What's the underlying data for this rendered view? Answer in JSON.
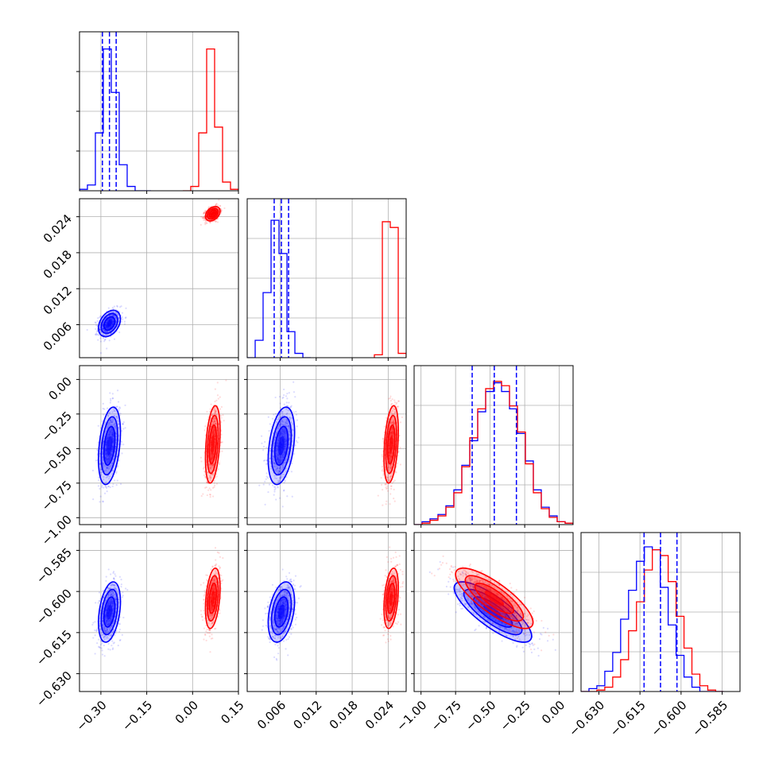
{
  "chart_data": {
    "type": "corner",
    "parameters": 4,
    "colors": {
      "blue": "#0000ff",
      "red": "#ff0000",
      "grid": "#b0b0b0"
    },
    "grid": true,
    "axes": [
      {
        "lim": [
          -0.37,
          0.15
        ],
        "ticks": [
          -0.3,
          -0.15,
          0.0,
          0.15
        ],
        "tick_labels": [
          "−0.30",
          "−0.15",
          "0.00",
          "0.15"
        ]
      },
      {
        "lim": [
          0.0005,
          0.027
        ],
        "ticks": [
          0.006,
          0.012,
          0.018,
          0.024
        ],
        "tick_labels": [
          "0.006",
          "0.012",
          "0.018",
          "0.024"
        ]
      },
      {
        "lim": [
          -1.05,
          0.1
        ],
        "ticks": [
          -1.0,
          -0.75,
          -0.5,
          -0.25,
          0.0
        ],
        "tick_labels": [
          "−1.00",
          "−0.75",
          "−0.50",
          "−0.25",
          "0.00"
        ]
      },
      {
        "lim": [
          -0.6365,
          -0.5785
        ],
        "ticks": [
          -0.63,
          -0.615,
          -0.6,
          -0.585
        ],
        "tick_labels": [
          "−0.630",
          "−0.615",
          "−0.600",
          "−0.585"
        ]
      }
    ],
    "series": [
      {
        "color": "blue",
        "mean": [
          -0.272,
          0.0062,
          -0.48,
          -0.6075
        ],
        "std": [
          0.018,
          0.0011,
          0.14,
          0.0055
        ],
        "quantiles": [
          [
            -0.295,
            -0.272,
            -0.25
          ],
          [
            0.005,
            0.0062,
            0.0074
          ],
          [
            -0.63,
            -0.47,
            -0.31
          ],
          [
            -0.6135,
            -0.6075,
            -0.6015
          ]
        ],
        "histograms": [
          {
            "edges": [
              -0.37,
              -0.344,
              -0.318,
              -0.292,
              -0.266,
              -0.24,
              -0.214,
              -0.188,
              -0.162,
              -0.136
            ],
            "counts": [
              0.01,
              0.04,
              0.4,
              0.98,
              0.68,
              0.18,
              0.03,
              0.0,
              0.0
            ]
          },
          {
            "edges": [
              0.0005,
              0.00183,
              0.00315,
              0.00448,
              0.0058,
              0.00713,
              0.00845,
              0.00978,
              0.0111
            ],
            "counts": [
              0.0,
              0.12,
              0.45,
              0.95,
              0.72,
              0.18,
              0.03,
              0.0
            ]
          },
          {
            "edges": [
              -1.05,
              -0.9925,
              -0.935,
              -0.8775,
              -0.82,
              -0.7625,
              -0.705,
              -0.6475,
              -0.59,
              -0.5325,
              -0.475,
              -0.4175,
              -0.36,
              -0.3025,
              -0.245,
              -0.1875,
              -0.13,
              -0.0725,
              -0.015,
              0.0425,
              0.1
            ],
            "counts": [
              0.0,
              0.02,
              0.04,
              0.07,
              0.13,
              0.24,
              0.41,
              0.58,
              0.78,
              0.92,
              0.98,
              0.92,
              0.8,
              0.63,
              0.44,
              0.24,
              0.12,
              0.06,
              0.02,
              0.01
            ]
          },
          {
            "edges": [
              -0.6365,
              -0.63361,
              -0.63072,
              -0.62783,
              -0.62494,
              -0.62205,
              -0.61916,
              -0.61627,
              -0.61338,
              -0.61049,
              -0.6076,
              -0.60471,
              -0.60182,
              -0.59893,
              -0.59604,
              -0.59315,
              -0.59026,
              -0.58737,
              -0.58448
            ],
            "counts": [
              0.0,
              0.02,
              0.04,
              0.14,
              0.27,
              0.5,
              0.7,
              0.9,
              1.0,
              0.98,
              0.72,
              0.46,
              0.25,
              0.1,
              0.03,
              0.0,
              0.0,
              0.0
            ]
          }
        ]
      },
      {
        "color": "red",
        "mean": [
          0.066,
          0.0245,
          -0.47,
          -0.6025
        ],
        "std": [
          0.012,
          0.0006,
          0.14,
          0.0055
        ],
        "histograms": [
          {
            "edges": [
              -0.032,
              -0.006,
              0.02,
              0.046,
              0.072,
              0.098,
              0.124,
              0.15
            ],
            "counts": [
              0.0,
              0.03,
              0.4,
              0.98,
              0.44,
              0.06,
              0.01
            ]
          },
          {
            "edges": [
              0.0217,
              0.02303,
              0.02435,
              0.02568,
              0.027
            ],
            "counts": [
              0.02,
              0.94,
              0.9,
              0.03
            ]
          },
          {
            "edges": [
              -1.05,
              -0.9925,
              -0.935,
              -0.8775,
              -0.82,
              -0.7625,
              -0.705,
              -0.6475,
              -0.59,
              -0.5325,
              -0.475,
              -0.4175,
              -0.36,
              -0.3025,
              -0.245,
              -0.1875,
              -0.13,
              -0.0725,
              -0.015,
              0.0425,
              0.1
            ],
            "counts": [
              0.0,
              0.01,
              0.03,
              0.06,
              0.12,
              0.22,
              0.4,
              0.6,
              0.8,
              0.94,
              0.99,
              0.96,
              0.82,
              0.64,
              0.42,
              0.22,
              0.11,
              0.05,
              0.02,
              0.01
            ]
          },
          {
            "edges": [
              -0.6365,
              -0.63361,
              -0.63072,
              -0.62783,
              -0.62494,
              -0.62205,
              -0.61916,
              -0.61627,
              -0.61338,
              -0.61049,
              -0.6076,
              -0.60471,
              -0.60182,
              -0.59893,
              -0.59604,
              -0.59315,
              -0.59026,
              -0.58737,
              -0.58448
            ],
            "counts": [
              0.0,
              0.0,
              0.01,
              0.03,
              0.1,
              0.22,
              0.42,
              0.62,
              0.84,
              0.98,
              0.94,
              0.76,
              0.52,
              0.3,
              0.12,
              0.04,
              0.01,
              0.0
            ]
          }
        ]
      }
    ],
    "correlations": {
      "2-3": -0.8
    }
  }
}
